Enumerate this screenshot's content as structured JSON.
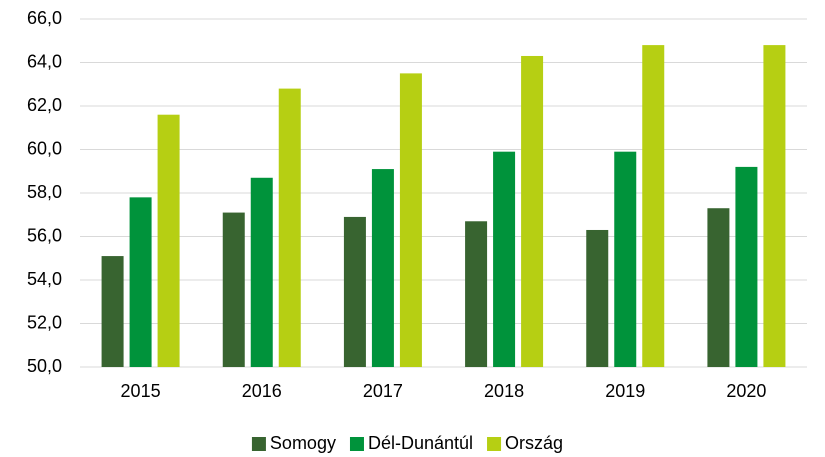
{
  "chart_data": {
    "type": "bar",
    "categories": [
      "2015",
      "2016",
      "2017",
      "2018",
      "2019",
      "2020"
    ],
    "series": [
      {
        "name": "Somogy",
        "color": "#386430",
        "values": [
          55.1,
          57.1,
          56.9,
          56.7,
          56.3,
          57.3
        ]
      },
      {
        "name": "Dél-Dunántúl",
        "color": "#00933b",
        "values": [
          57.8,
          58.7,
          59.1,
          59.9,
          59.9,
          59.2
        ]
      },
      {
        "name": "Ország",
        "color": "#b6cf13",
        "values": [
          61.6,
          62.8,
          63.5,
          64.3,
          64.8,
          64.8
        ]
      }
    ],
    "ylim": [
      50,
      66
    ],
    "yticks": [
      {
        "value": 50,
        "label": "50,0"
      },
      {
        "value": 52,
        "label": "52,0"
      },
      {
        "value": 54,
        "label": "54,0"
      },
      {
        "value": 56,
        "label": "56,0"
      },
      {
        "value": 58,
        "label": "58,0"
      },
      {
        "value": 60,
        "label": "60,0"
      },
      {
        "value": 62,
        "label": "62,0"
      },
      {
        "value": 64,
        "label": "64,0"
      },
      {
        "value": 66,
        "label": "66,0"
      }
    ],
    "grid": true,
    "legend": "bottom"
  }
}
